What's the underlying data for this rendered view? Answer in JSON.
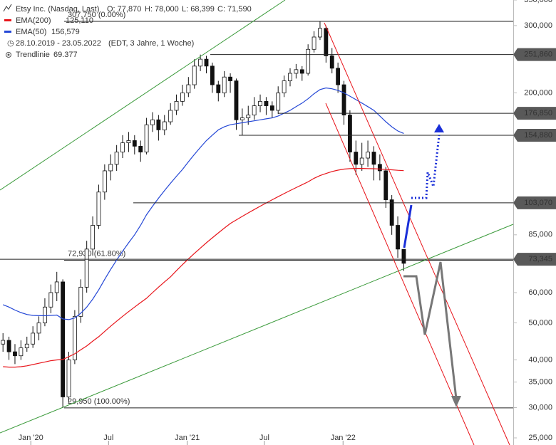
{
  "header": {
    "title": "Etsy Inc. (Nasdaq, Last)",
    "ohlc": [
      "O: 77,870",
      "H: 78,000",
      "L: 68,399",
      "C: 71,590"
    ],
    "range": "28.10.2019 - 23.05.2022",
    "range_note": "(EDT, 3 Jahre, 1 Woche)",
    "trendline": "Trendlinie",
    "trendline_value": "69.377"
  },
  "chart_data": {
    "type": "candlestick",
    "log_scale": true,
    "ylim": [
      25000,
      350000
    ],
    "yticks": [
      {
        "value": 25000,
        "label": "25,000"
      },
      {
        "value": 30000,
        "label": "30,000"
      },
      {
        "value": 35000,
        "label": "35,000"
      },
      {
        "value": 40000,
        "label": "40,000"
      },
      {
        "value": 50000,
        "label": "50,000"
      },
      {
        "value": 60000,
        "label": "60,000"
      },
      {
        "value": 85000,
        "label": "85,000"
      },
      {
        "value": 200000,
        "label": "200,000"
      },
      {
        "value": 300000,
        "label": "300,000"
      },
      {
        "value": 350000,
        "label": "350,000"
      }
    ],
    "xlim": [
      -0.5,
      85.3
    ],
    "xticks": [
      {
        "value": 4.65,
        "label": "Jan '20"
      },
      {
        "value": 17.65,
        "label": "Jul"
      },
      {
        "value": 30.8,
        "label": "Jan '21"
      },
      {
        "value": 43.7,
        "label": "Jul"
      },
      {
        "value": 56.85,
        "label": "Jan '22"
      }
    ],
    "candles": [
      [
        44000,
        47000,
        42000,
        45000
      ],
      [
        45000,
        46000,
        40000,
        42000
      ],
      [
        42000,
        44000,
        39000,
        41000
      ],
      [
        41000,
        45000,
        40000,
        43000
      ],
      [
        43000,
        46000,
        42000,
        44000
      ],
      [
        44000,
        49000,
        43000,
        47000
      ],
      [
        47000,
        52000,
        45000,
        50000
      ],
      [
        50000,
        58000,
        49000,
        55000
      ],
      [
        55000,
        63000,
        53000,
        60000
      ],
      [
        60000,
        68000,
        57000,
        64000
      ],
      [
        64000,
        65000,
        29950,
        32000
      ],
      [
        32000,
        42000,
        31000,
        40000
      ],
      [
        40000,
        54000,
        39000,
        52000
      ],
      [
        52000,
        65000,
        50000,
        62000
      ],
      [
        62000,
        82000,
        60000,
        78000
      ],
      [
        78000,
        95000,
        75000,
        90000
      ],
      [
        90000,
        115000,
        88000,
        110000
      ],
      [
        110000,
        130000,
        105000,
        125000
      ],
      [
        125000,
        138000,
        118000,
        130000
      ],
      [
        130000,
        146000,
        125000,
        140000
      ],
      [
        140000,
        155000,
        135000,
        148000
      ],
      [
        148000,
        158000,
        140000,
        150000
      ],
      [
        150000,
        155000,
        138000,
        145000
      ],
      [
        145000,
        150000,
        132000,
        140000
      ],
      [
        140000,
        172000,
        138000,
        165000
      ],
      [
        165000,
        178000,
        158000,
        170000
      ],
      [
        170000,
        175000,
        150000,
        160000
      ],
      [
        160000,
        175000,
        155000,
        168000
      ],
      [
        168000,
        188000,
        165000,
        180000
      ],
      [
        180000,
        198000,
        175000,
        190000
      ],
      [
        190000,
        210000,
        185000,
        200000
      ],
      [
        200000,
        220000,
        195000,
        210000
      ],
      [
        210000,
        245000,
        205000,
        235000
      ],
      [
        235000,
        251860,
        228000,
        245000
      ],
      [
        245000,
        250000,
        225000,
        235000
      ],
      [
        235000,
        240000,
        200000,
        210000
      ],
      [
        210000,
        215000,
        190000,
        200000
      ],
      [
        200000,
        228000,
        195000,
        220000
      ],
      [
        220000,
        225000,
        200000,
        215000
      ],
      [
        215000,
        218000,
        160000,
        170000
      ],
      [
        170000,
        182000,
        155000,
        172000
      ],
      [
        172000,
        185000,
        165000,
        175000
      ],
      [
        175000,
        195000,
        170000,
        185000
      ],
      [
        185000,
        198000,
        178000,
        190000
      ],
      [
        190000,
        195000,
        175000,
        185000
      ],
      [
        185000,
        190000,
        172000,
        180000
      ],
      [
        180000,
        208000,
        176000,
        200000
      ],
      [
        200000,
        222000,
        195000,
        215000
      ],
      [
        215000,
        232000,
        208000,
        225000
      ],
      [
        225000,
        238000,
        218000,
        230000
      ],
      [
        230000,
        235000,
        215000,
        225000
      ],
      [
        225000,
        268000,
        222000,
        260000
      ],
      [
        260000,
        290000,
        255000,
        280000
      ],
      [
        280000,
        307750,
        275000,
        295000
      ],
      [
        295000,
        300000,
        240000,
        250000
      ],
      [
        250000,
        262000,
        225000,
        232000
      ],
      [
        232000,
        240000,
        200000,
        210000
      ],
      [
        210000,
        215000,
        165000,
        175000
      ],
      [
        175000,
        180000,
        132000,
        140000
      ],
      [
        140000,
        150000,
        122000,
        130000
      ],
      [
        130000,
        148000,
        125000,
        135000
      ],
      [
        135000,
        150000,
        128000,
        140000
      ],
      [
        140000,
        145000,
        118000,
        130000
      ],
      [
        130000,
        138000,
        118000,
        125000
      ],
      [
        125000,
        128000,
        100000,
        105000
      ],
      [
        105000,
        108000,
        85000,
        90000
      ],
      [
        90000,
        95000,
        74000,
        78000
      ],
      [
        77870,
        78000,
        68399,
        71590
      ]
    ],
    "series": [
      {
        "name": "EMA(200)",
        "color": "#e8151b",
        "value_label": "125,110",
        "values": [
          38400,
          38300,
          38300,
          38400,
          38600,
          38900,
          39200,
          39500,
          39800,
          40000,
          40100,
          40800,
          41500,
          42500,
          43500,
          44800,
          46000,
          47500,
          49000,
          50500,
          52000,
          53500,
          55000,
          56500,
          58000,
          60000,
          62000,
          64000,
          66000,
          68500,
          71000,
          73500,
          76000,
          78500,
          81000,
          83500,
          86000,
          88500,
          91000,
          93000,
          95000,
          97000,
          99000,
          101000,
          103000,
          105000,
          107000,
          109000,
          111000,
          113000,
          115000,
          117000,
          119500,
          121500,
          123000,
          124500,
          125500,
          126300,
          126700,
          126800,
          126800,
          126700,
          126600,
          126400,
          126100,
          125800,
          125400,
          125110
        ]
      },
      {
        "name": "EMA(50)",
        "color": "#2447d6",
        "value_label": "156,579",
        "values": [
          55800,
          55000,
          54000,
          53200,
          52600,
          52300,
          52200,
          52200,
          52300,
          52400,
          51200,
          51000,
          51500,
          53000,
          55000,
          57700,
          61000,
          65000,
          69000,
          73000,
          77000,
          81000,
          85000,
          90000,
          96000,
          101000,
          106000,
          111000,
          116000,
          121000,
          126000,
          132000,
          138000,
          144000,
          150000,
          155000,
          160000,
          163000,
          165000,
          166000,
          167000,
          168000,
          169000,
          170000,
          171000,
          172000,
          174000,
          177000,
          180000,
          184000,
          188000,
          193000,
          199000,
          204000,
          206000,
          205000,
          203000,
          200000,
          196000,
          192000,
          188000,
          184000,
          180000,
          174000,
          168000,
          163000,
          159000,
          156579
        ]
      }
    ],
    "levels": [
      {
        "value": 251860,
        "label": "251,860"
      },
      {
        "value": 176850,
        "label": "176,850"
      },
      {
        "value": 154880,
        "label": "154,880"
      },
      {
        "value": 103070,
        "label": "103,070"
      },
      {
        "value": 73345,
        "label": "73,345"
      }
    ],
    "fib_levels": [
      {
        "value": 307750,
        "label": "307,750 (0.00%)"
      },
      {
        "value": 72930,
        "label": "72,930 (61.80%)"
      },
      {
        "value": 29950,
        "label": "29,950 (100.00%)"
      }
    ]
  }
}
